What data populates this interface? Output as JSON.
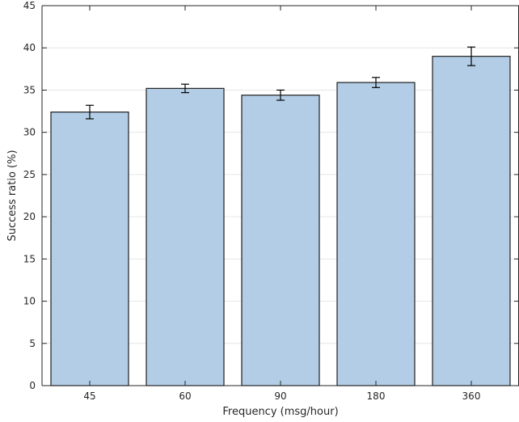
{
  "chart_data": {
    "type": "bar",
    "xlabel": "Frequency (msg/hour)",
    "ylabel": "Success ratio (%)",
    "ylim": [
      0,
      45
    ],
    "yticks": [
      0,
      5,
      10,
      15,
      20,
      25,
      30,
      35,
      40,
      45
    ],
    "categories": [
      "45",
      "60",
      "90",
      "180",
      "360"
    ],
    "values": [
      32.4,
      35.2,
      34.4,
      35.9,
      39.0
    ],
    "error": [
      0.8,
      0.5,
      0.6,
      0.6,
      1.1
    ],
    "grid": true,
    "colors": {
      "bar_fill": "#b3cde6",
      "bar_edge": "#1f1f1f",
      "grid": "#e6e6e6",
      "axis": "#262626"
    }
  }
}
